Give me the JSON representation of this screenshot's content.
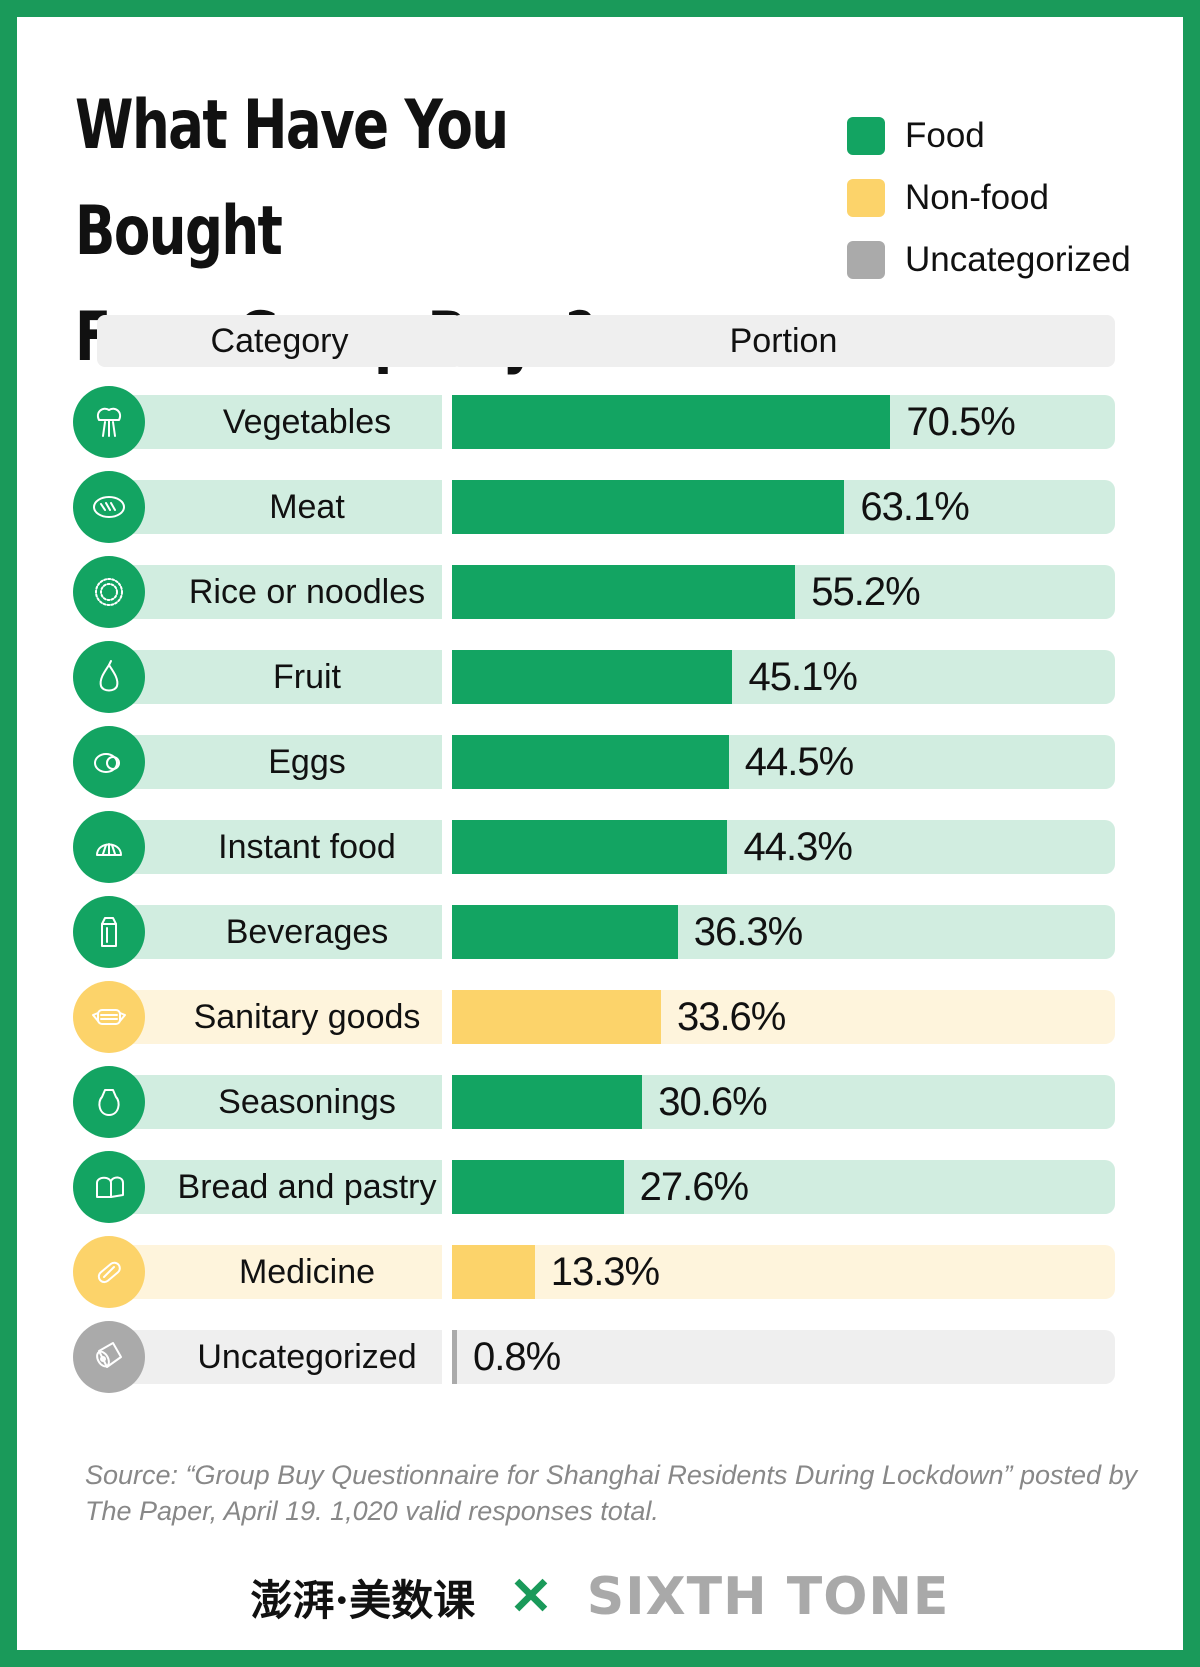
{
  "title": "What Have You Bought\nFrom Group Buys?",
  "legend": [
    {
      "label": "Food",
      "color": "#13a462"
    },
    {
      "label": "Non-food",
      "color": "#fcd36a"
    },
    {
      "label": "Uncategorized",
      "color": "#aaaaaa"
    }
  ],
  "table": {
    "header_category": "Category",
    "header_portion": "Portion"
  },
  "colors": {
    "food": "#13a462",
    "food_light": "#d1ede0",
    "nonfood": "#fcd36a",
    "nonfood_light": "#fef4dc",
    "uncat": "#aaaaaa",
    "uncat_light": "#efefef",
    "frame": "#1a9a5a"
  },
  "chart_data": {
    "type": "bar",
    "orientation": "horizontal",
    "title": "What Have You Bought From Group Buys?",
    "xlabel": "Portion",
    "ylabel": "Category",
    "xlim": [
      0,
      100
    ],
    "legend_position": "top-right",
    "categories": [
      "Vegetables",
      "Meat",
      "Rice or noodles",
      "Fruit",
      "Eggs",
      "Instant food",
      "Beverages",
      "Sanitary goods",
      "Seasonings",
      "Bread and pastry",
      "Medicine",
      "Uncategorized"
    ],
    "values": [
      70.5,
      63.1,
      55.2,
      45.1,
      44.5,
      44.3,
      36.3,
      33.6,
      30.6,
      27.6,
      13.3,
      0.8
    ],
    "labels": [
      "70.5%",
      "63.1%",
      "55.2%",
      "45.1%",
      "44.5%",
      "44.3%",
      "36.3%",
      "33.6%",
      "30.6%",
      "27.6%",
      "13.3%",
      "0.8%"
    ],
    "groups": [
      "Food",
      "Food",
      "Food",
      "Food",
      "Food",
      "Food",
      "Food",
      "Non-food",
      "Food",
      "Food",
      "Non-food",
      "Uncategorized"
    ],
    "icons": [
      "vegetable-icon",
      "meat-icon",
      "rice-icon",
      "pear-icon",
      "egg-icon",
      "bun-icon",
      "milk-carton-icon",
      "mask-icon",
      "salt-shaker-icon",
      "bread-icon",
      "pill-icon",
      "toilet-roll-icon"
    ]
  },
  "source": "Source:  “Group Buy Questionnaire for Shanghai Residents During Lockdown” posted by The Paper, April 19. 1,020 valid responses total.",
  "footer": {
    "logo_cn": "澎湃·美数课",
    "cross": "✕",
    "logo_en": "SIXTH TONE"
  }
}
